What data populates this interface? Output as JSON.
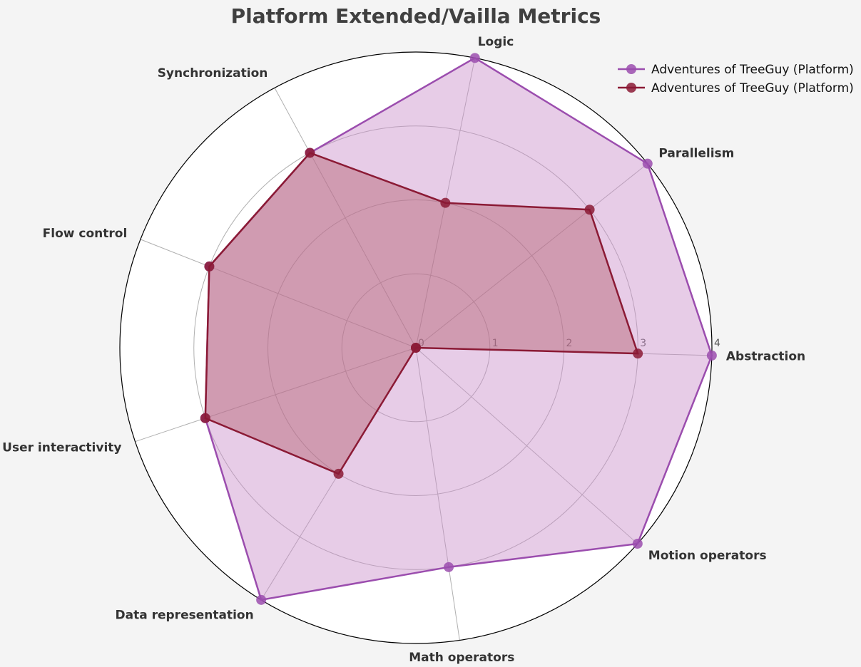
{
  "chart_data": {
    "type": "radar",
    "title": "Platform Extended/Vailla Metrics",
    "axes": [
      "Abstraction",
      "Parallelism",
      "Logic",
      "Synchronization",
      "Flow control",
      "User interactivity",
      "Data representation",
      "Math operators",
      "Motion operators"
    ],
    "rlim": [
      0,
      4
    ],
    "rticks": [
      "0",
      "1",
      "2",
      "3",
      "4"
    ],
    "grid": true,
    "legend_position": "top-right",
    "series": [
      {
        "name": "Adventures of TreeGuy (Platform)",
        "color": "#9b4dae",
        "fill": "#c98fca",
        "values": [
          4,
          4,
          4,
          3,
          3,
          3,
          4,
          3,
          4
        ]
      },
      {
        "name": "Adventures of TreeGuy (Platform)",
        "color": "#8b1a35",
        "fill": "#b3606f",
        "values": [
          3,
          3,
          2,
          3,
          3,
          3,
          2,
          0,
          0
        ]
      }
    ]
  },
  "colors": {
    "background": "#f4f4f4",
    "plot_background": "#ffffff",
    "grid": "#b0b0b0",
    "text": "#333333"
  }
}
